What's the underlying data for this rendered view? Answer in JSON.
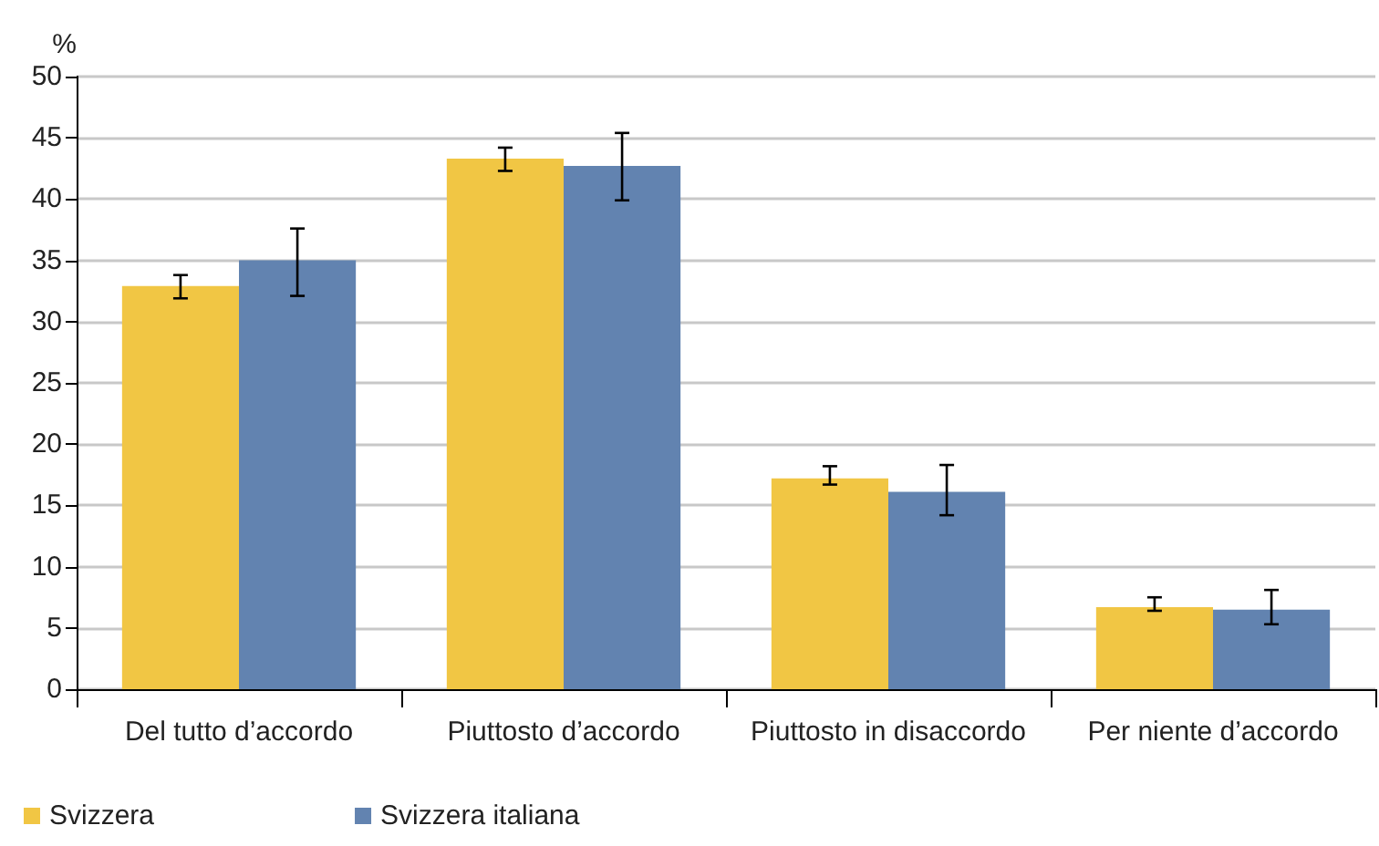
{
  "chart_data": {
    "type": "bar",
    "ylabel": "%",
    "categories": [
      "Del tutto d’accordo",
      "Piuttosto d’accordo",
      "Piuttosto in disaccordo",
      "Per niente d’accordo"
    ],
    "series": [
      {
        "name": "Svizzera",
        "color": "#f1c644",
        "values": [
          32.9,
          43.3,
          17.2,
          6.7
        ],
        "errors": [
          [
            31.9,
            33.8
          ],
          [
            42.3,
            44.2
          ],
          [
            16.7,
            18.2
          ],
          [
            6.4,
            7.5
          ]
        ]
      },
      {
        "name": "Svizzera italiana",
        "color": "#6283b0",
        "values": [
          35,
          42.7,
          16.1,
          6.5
        ],
        "errors": [
          [
            32.1,
            37.6
          ],
          [
            39.9,
            45.4
          ],
          [
            14.2,
            18.3
          ],
          [
            5.3,
            8.1
          ]
        ]
      }
    ],
    "ylim": [
      0,
      50
    ],
    "yticks": [
      0,
      5,
      10,
      15,
      20,
      25,
      30,
      35,
      40,
      45,
      50
    ],
    "grid": "y",
    "legend": "bottom left"
  }
}
